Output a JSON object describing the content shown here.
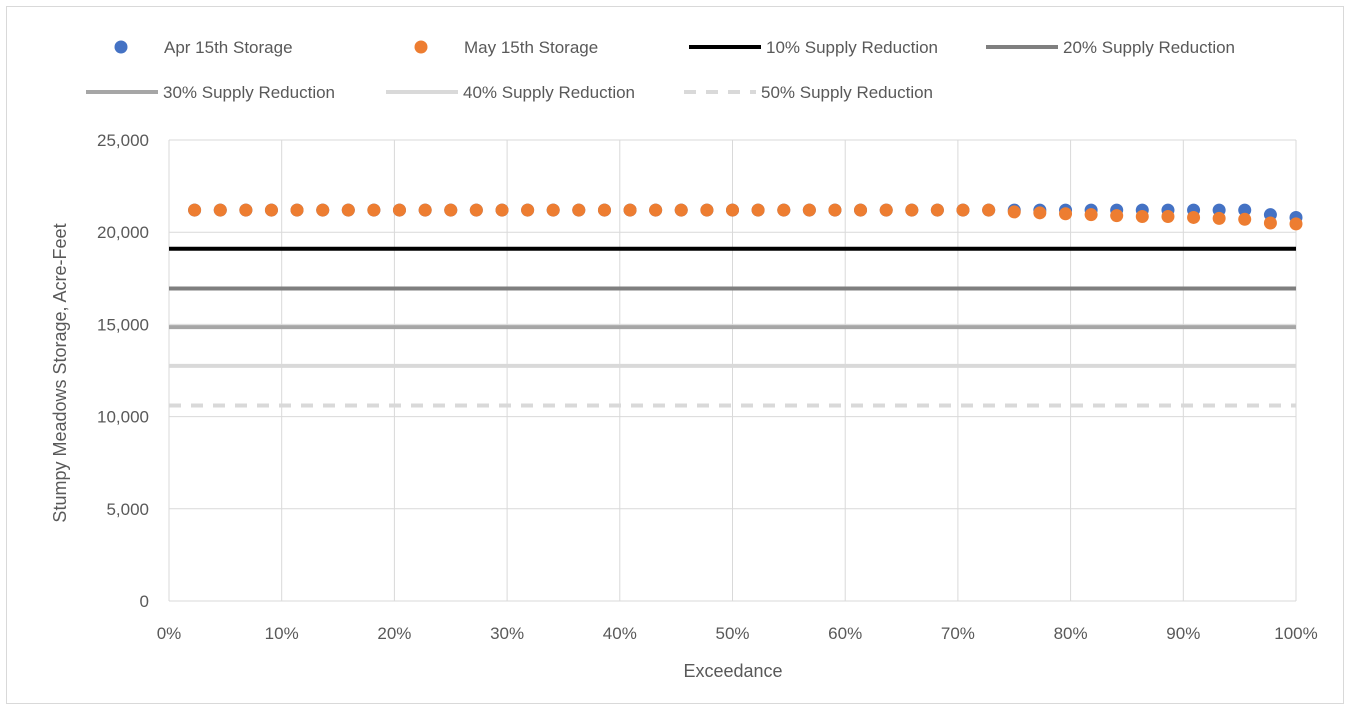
{
  "chart_data": {
    "type": "scatter",
    "xlabel": "Exceedance",
    "ylabel": "Stumpy Meadows Storage, Acre-Feet",
    "xlim": [
      0,
      1
    ],
    "ylim": [
      0,
      25000
    ],
    "x_ticks": [
      "0%",
      "10%",
      "20%",
      "30%",
      "40%",
      "50%",
      "60%",
      "70%",
      "80%",
      "90%",
      "100%"
    ],
    "y_ticks": [
      "0",
      "5,000",
      "10,000",
      "15,000",
      "20,000",
      "25,000"
    ],
    "grid": true,
    "legend_position": "top",
    "x": [
      0.0227,
      0.0455,
      0.0682,
      0.0909,
      0.1136,
      0.1364,
      0.1591,
      0.1818,
      0.2045,
      0.2273,
      0.25,
      0.2727,
      0.2955,
      0.3182,
      0.3409,
      0.3636,
      0.3864,
      0.4091,
      0.4318,
      0.4545,
      0.4773,
      0.5,
      0.5227,
      0.5455,
      0.5682,
      0.5909,
      0.6136,
      0.6364,
      0.6591,
      0.6818,
      0.7045,
      0.7273,
      0.75,
      0.7727,
      0.7955,
      0.8182,
      0.8409,
      0.8636,
      0.8864,
      0.9091,
      0.9318,
      0.9545,
      0.9773,
      1.0
    ],
    "series": [
      {
        "name": "Apr 15th Storage",
        "kind": "scatter",
        "color": "#4472c4",
        "values": [
          21200,
          21200,
          21200,
          21200,
          21200,
          21200,
          21200,
          21200,
          21200,
          21200,
          21200,
          21200,
          21200,
          21200,
          21200,
          21200,
          21200,
          21200,
          21200,
          21200,
          21200,
          21200,
          21200,
          21200,
          21200,
          21200,
          21200,
          21200,
          21200,
          21200,
          21200,
          21200,
          21200,
          21200,
          21200,
          21200,
          21200,
          21200,
          21200,
          21200,
          21200,
          21200,
          20950,
          20800
        ]
      },
      {
        "name": "May 15th Storage",
        "kind": "scatter",
        "color": "#ed7d31",
        "values": [
          21200,
          21200,
          21200,
          21200,
          21200,
          21200,
          21200,
          21200,
          21200,
          21200,
          21200,
          21200,
          21200,
          21200,
          21200,
          21200,
          21200,
          21200,
          21200,
          21200,
          21200,
          21200,
          21200,
          21200,
          21200,
          21200,
          21200,
          21200,
          21200,
          21200,
          21200,
          21200,
          21100,
          21050,
          21000,
          20950,
          20900,
          20850,
          20850,
          20800,
          20750,
          20700,
          20500,
          20450
        ]
      },
      {
        "name": "10% Supply Reduction",
        "kind": "hline",
        "value": 19100,
        "color": "#000000",
        "dash": "solid"
      },
      {
        "name": "20% Supply Reduction",
        "kind": "hline",
        "value": 16950,
        "color": "#7f7f7f",
        "dash": "solid"
      },
      {
        "name": "30% Supply Reduction",
        "kind": "hline",
        "value": 14850,
        "color": "#a6a6a6",
        "dash": "solid"
      },
      {
        "name": "40% Supply Reduction",
        "kind": "hline",
        "value": 12750,
        "color": "#d9d9d9",
        "dash": "solid"
      },
      {
        "name": "50% Supply Reduction",
        "kind": "hline",
        "value": 10600,
        "color": "#d9d9d9",
        "dash": "dashed"
      }
    ]
  }
}
